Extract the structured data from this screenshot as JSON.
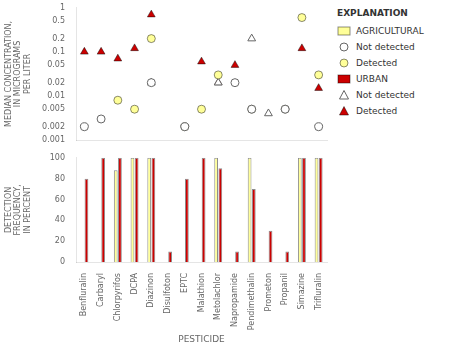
{
  "chart_data": [
    {
      "type": "scatter",
      "categories": [
        "Benfluralin",
        "Carbaryl",
        "Chlorpyrifos",
        "DCPA",
        "Diazinon",
        "Disulfoton",
        "EPTC",
        "Malathion",
        "Metolachlor",
        "Napropamide",
        "Pendimethalin",
        "Prometon",
        "Propanil",
        "Simazine",
        "Trifluralin"
      ],
      "ylabel": "MEDIAN CONCENTRATION,\nIN MICROGRAMS\nPER LITER",
      "log": "y",
      "ylim": [
        0.001,
        1
      ],
      "yticks": [
        0.001,
        0.002,
        0.005,
        0.01,
        0.02,
        0.05,
        0.1,
        0.2,
        0.5,
        1
      ],
      "grid": false,
      "tick_labels": "y",
      "legend": "right",
      "legend_title": "EXPLANATION",
      "series": [
        {
          "name": "Not detected",
          "color": "#666666",
          "marker": "open_circle",
          "values": [
            0.002,
            0.003,
            null,
            null,
            0.02,
            null,
            0.002,
            null,
            null,
            0.02,
            0.005,
            null,
            0.005,
            null,
            0.002
          ]
        },
        {
          "name": "Detected",
          "color": "#ffff99",
          "marker": "circle",
          "values": [
            null,
            null,
            0.008,
            0.005,
            0.2,
            null,
            0.002,
            0.005,
            0.03,
            null,
            0.005,
            null,
            0.005,
            0.6,
            0.03
          ]
        },
        {
          "name": "Not detected",
          "color": "#666666",
          "marker": "open_triangle",
          "values": [
            null,
            null,
            null,
            null,
            0.02,
            null,
            null,
            null,
            0.02,
            null,
            0.2,
            0.004,
            null,
            null,
            null
          ]
        },
        {
          "name": "Detected",
          "color": "#cc0000",
          "marker": "triangle",
          "values": [
            0.1,
            0.1,
            0.07,
            0.12,
            0.7,
            null,
            null,
            0.06,
            0.02,
            0.05,
            null,
            null,
            null,
            0.12,
            0.015
          ]
        }
      ]
    },
    {
      "type": "bar",
      "categories": [
        "Benfluralin",
        "Carbaryl",
        "Chlorpyrifos",
        "DCPA",
        "Diazinon",
        "Disulfoton",
        "EPTC",
        "Malathion",
        "Metolachlor",
        "Napropamide",
        "Pendimethalin",
        "Prometon",
        "Propanil",
        "Simazine",
        "Trifluralin"
      ],
      "xlabel": "PESTICIDE",
      "ylabel": "DETECTION\nFREQUENCY,\nIN PERCENT",
      "ylim": [
        0,
        100
      ],
      "yticks": [
        0,
        20,
        40,
        60,
        80,
        100
      ],
      "grid": false,
      "legend": "right",
      "series": [
        {
          "name": "AGRICULTURAL",
          "color": "#ffff99",
          "values": [
            0,
            0,
            88,
            100,
            100,
            0,
            0,
            0,
            100,
            0,
            100,
            0,
            0,
            100,
            100
          ]
        },
        {
          "name": "URBAN",
          "color": "#cc0000",
          "values": [
            80,
            100,
            100,
            100,
            100,
            10,
            80,
            100,
            90,
            10,
            70,
            30,
            10,
            100,
            100
          ]
        }
      ]
    }
  ]
}
